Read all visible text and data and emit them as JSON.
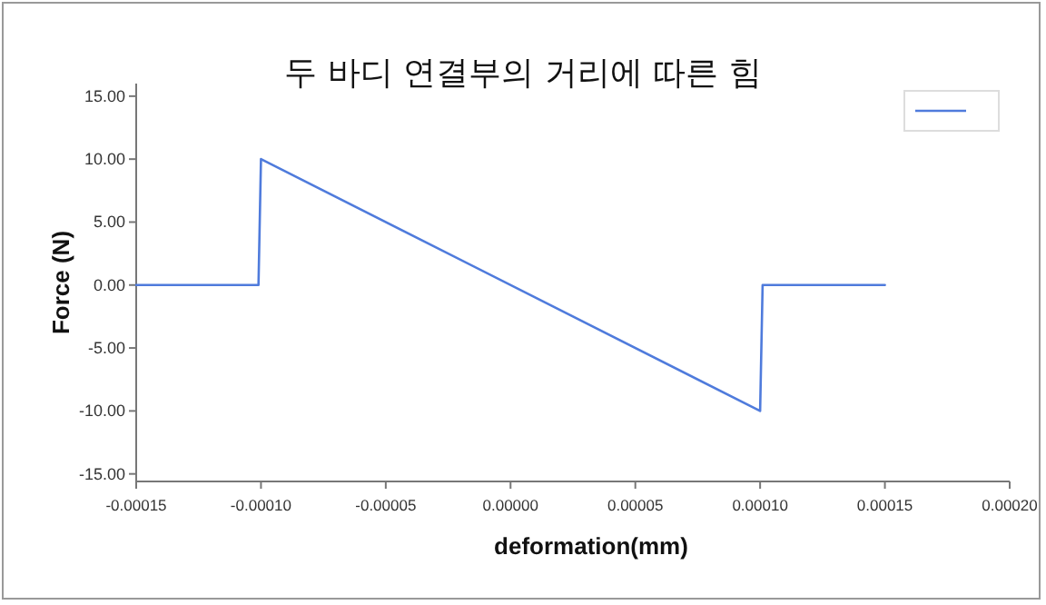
{
  "chart_data": {
    "type": "line",
    "title": "두 바디 연결부의 거리에 따른 힘",
    "xlabel": "deformation(mm)",
    "ylabel": "Force (N)",
    "x": [
      -0.00015,
      -0.000101,
      -0.0001,
      0.0001,
      0.000101,
      0.00015
    ],
    "series": [
      {
        "color": "#4f7bdc",
        "values": [
          0,
          0,
          10,
          -10,
          0,
          0
        ]
      }
    ],
    "xlim": [
      -0.00015,
      0.0002
    ],
    "ylim": [
      -15.6,
      16
    ],
    "xticks": [
      {
        "value": -0.00015,
        "label": "-0.00015"
      },
      {
        "value": -0.0001,
        "label": "-0.00010"
      },
      {
        "value": -5e-05,
        "label": "-0.00005"
      },
      {
        "value": 0,
        "label": "0.00000"
      },
      {
        "value": 5e-05,
        "label": "0.00005"
      },
      {
        "value": 0.0001,
        "label": "0.00010"
      },
      {
        "value": 0.00015,
        "label": "0.00015"
      },
      {
        "value": 0.0002,
        "label": "0.00020"
      }
    ],
    "yticks": [
      {
        "value": 15,
        "label": "15.00"
      },
      {
        "value": 10,
        "label": "10.00"
      },
      {
        "value": 5,
        "label": "5.00"
      },
      {
        "value": 0,
        "label": "0.00"
      },
      {
        "value": -5,
        "label": "-5.00"
      },
      {
        "value": -10,
        "label": "-10.00"
      },
      {
        "value": -15,
        "label": "-15.00"
      }
    ]
  }
}
